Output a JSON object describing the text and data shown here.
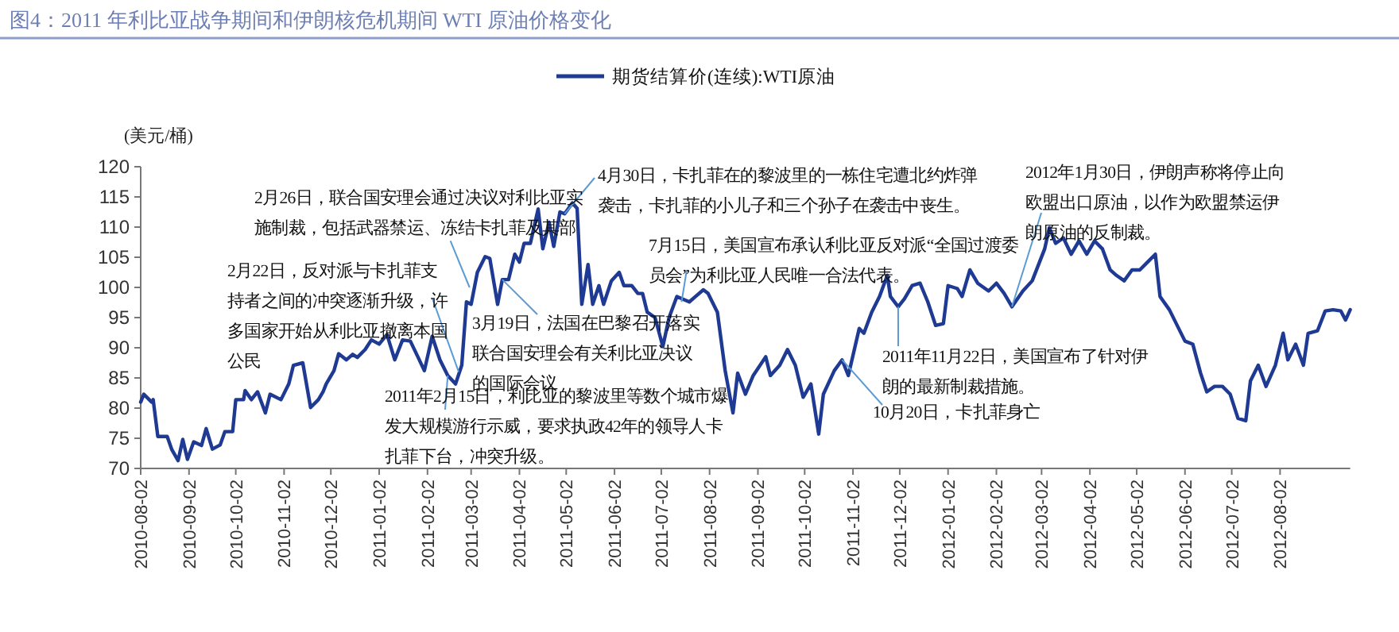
{
  "chart_data": {
    "type": "line",
    "title": "图4：2011 年利比亚战争期间和伊朗核危机期间 WTI 原油价格变化",
    "ylabel": "(美元/桶)",
    "legend": "top",
    "grid": false,
    "xlim": [
      "2010-08-02",
      "2012-09-16"
    ],
    "xticks": [
      "2010-08-02",
      "2010-09-02",
      "2010-10-02",
      "2010-11-02",
      "2010-12-02",
      "2011-01-02",
      "2011-02-02",
      "2011-03-02",
      "2011-04-02",
      "2011-05-02",
      "2011-06-02",
      "2011-07-02",
      "2011-08-02",
      "2011-09-02",
      "2011-10-02",
      "2011-11-02",
      "2011-12-02",
      "2012-01-02",
      "2012-02-02",
      "2012-03-02",
      "2012-04-02",
      "2012-05-02",
      "2012-06-02",
      "2012-07-02",
      "2012-08-02"
    ],
    "ylim": [
      70,
      120
    ],
    "yticks": [
      70,
      75,
      80,
      85,
      90,
      95,
      100,
      105,
      110,
      115,
      120
    ],
    "x": [
      "2010-08-02",
      "2010-08-04",
      "2010-08-09",
      "2010-08-10",
      "2010-08-13",
      "2010-08-19",
      "2010-08-22",
      "2010-08-26",
      "2010-08-29",
      "2010-09-01",
      "2010-09-05",
      "2010-09-10",
      "2010-09-13",
      "2010-09-17",
      "2010-09-22",
      "2010-09-25",
      "2010-09-30",
      "2010-10-02",
      "2010-10-07",
      "2010-10-08",
      "2010-10-12",
      "2010-10-16",
      "2010-10-21",
      "2010-10-24",
      "2010-10-31",
      "2010-11-05",
      "2010-11-08",
      "2010-11-14",
      "2010-11-19",
      "2010-11-24",
      "2010-11-27",
      "2010-11-29",
      "2010-12-04",
      "2010-12-07",
      "2010-12-12",
      "2010-12-16",
      "2010-12-19",
      "2010-12-24",
      "2010-12-28",
      "2011-01-02",
      "2011-01-07",
      "2011-01-12",
      "2011-01-17",
      "2011-01-22",
      "2011-01-27",
      "2011-01-31",
      "2011-02-05",
      "2011-02-10",
      "2011-02-15",
      "2011-02-20",
      "2011-02-24",
      "2011-02-27",
      "2011-03-02",
      "2011-03-06",
      "2011-03-11",
      "2011-03-14",
      "2011-03-19",
      "2011-03-22",
      "2011-03-26",
      "2011-03-30",
      "2011-04-02",
      "2011-04-05",
      "2011-04-09",
      "2011-04-14",
      "2011-04-17",
      "2011-04-21",
      "2011-04-24",
      "2011-04-28",
      "2011-05-01",
      "2011-05-06",
      "2011-05-09",
      "2011-05-12",
      "2011-05-16",
      "2011-05-19",
      "2011-05-23",
      "2011-05-26",
      "2011-05-31",
      "2011-06-05",
      "2011-06-08",
      "2011-06-13",
      "2011-06-17",
      "2011-06-20",
      "2011-06-23",
      "2011-06-28",
      "2011-07-03",
      "2011-07-07",
      "2011-07-12",
      "2011-07-20",
      "2011-07-24",
      "2011-07-29",
      "2011-08-01",
      "2011-08-07",
      "2011-08-12",
      "2011-08-17",
      "2011-08-20",
      "2011-08-25",
      "2011-08-30",
      "2011-09-07",
      "2011-09-10",
      "2011-09-16",
      "2011-09-21",
      "2011-09-26",
      "2011-10-01",
      "2011-10-06",
      "2011-10-11",
      "2011-10-14",
      "2011-10-21",
      "2011-10-26",
      "2011-10-30",
      "2011-11-06",
      "2011-11-09",
      "2011-11-14",
      "2011-11-19",
      "2011-11-24",
      "2011-11-26",
      "2011-12-01",
      "2011-12-05",
      "2011-12-10",
      "2011-12-15",
      "2011-12-20",
      "2011-12-25",
      "2011-12-30",
      "2012-01-02",
      "2012-01-08",
      "2012-01-11",
      "2012-01-16",
      "2012-01-21",
      "2012-01-28",
      "2012-02-02",
      "2012-02-07",
      "2012-02-12",
      "2012-02-19",
      "2012-02-25",
      "2012-03-04",
      "2012-03-07",
      "2012-03-11",
      "2012-03-16",
      "2012-03-21",
      "2012-03-26",
      "2012-03-31",
      "2012-04-05",
      "2012-04-10",
      "2012-04-15",
      "2012-04-19",
      "2012-04-24",
      "2012-04-29",
      "2012-05-04",
      "2012-05-09",
      "2012-05-14",
      "2012-05-17",
      "2012-05-23",
      "2012-05-28",
      "2012-06-02",
      "2012-06-07",
      "2012-06-12",
      "2012-06-16",
      "2012-06-21",
      "2012-06-26",
      "2012-07-01",
      "2012-07-06",
      "2012-07-11",
      "2012-07-14",
      "2012-07-19",
      "2012-07-24",
      "2012-07-30",
      "2012-08-04",
      "2012-08-07",
      "2012-08-12",
      "2012-08-17",
      "2012-08-20",
      "2012-08-26",
      "2012-08-31",
      "2012-09-05",
      "2012-09-10",
      "2012-09-13",
      "2012-09-16"
    ],
    "series": [
      {
        "name": "期货结算价(连续):WTI原油",
        "color": "#1f3a93",
        "values": [
          81.0,
          82.3,
          81.0,
          81.4,
          75.3,
          75.3,
          73.1,
          71.3,
          74.8,
          71.5,
          74.4,
          73.8,
          76.6,
          73.2,
          73.9,
          76.1,
          76.1,
          81.4,
          81.4,
          82.9,
          81.4,
          82.7,
          79.2,
          82.3,
          81.4,
          84.0,
          87.1,
          87.5,
          80.1,
          81.4,
          82.7,
          84.0,
          86.2,
          89.0,
          88.0,
          88.9,
          88.4,
          89.7,
          91.3,
          90.6,
          92.2,
          88.0,
          91.3,
          91.1,
          88.4,
          86.2,
          91.9,
          88.0,
          85.4,
          84.0,
          87.1,
          97.6,
          97.2,
          102.5,
          105.1,
          104.8,
          97.2,
          101.3,
          101.3,
          105.5,
          104.2,
          107.3,
          107.3,
          113.0,
          106.4,
          110.8,
          106.8,
          112.5,
          112.2,
          114.0,
          113.1,
          97.2,
          103.8,
          97.2,
          100.3,
          97.2,
          101.1,
          102.5,
          100.3,
          100.3,
          99.0,
          99.0,
          95.9,
          95.0,
          90.2,
          95.0,
          98.5,
          97.6,
          98.5,
          99.6,
          99.0,
          95.9,
          86.2,
          79.2,
          85.8,
          82.3,
          85.4,
          88.5,
          85.4,
          87.1,
          89.7,
          87.1,
          81.8,
          84.0,
          75.7,
          82.3,
          86.2,
          88.0,
          85.4,
          93.2,
          92.4,
          95.9,
          98.5,
          102.0,
          98.5,
          96.8,
          98.1,
          100.3,
          100.7,
          97.6,
          93.7,
          94.0,
          100.3,
          99.8,
          98.5,
          102.9,
          100.7,
          99.4,
          100.7,
          99.0,
          96.8,
          99.4,
          101.1,
          106.4,
          109.9,
          107.3,
          108.2,
          105.5,
          107.7,
          105.5,
          107.7,
          106.4,
          102.9,
          102.0,
          101.1,
          102.9,
          102.9,
          104.2,
          105.5,
          98.5,
          96.3,
          93.7,
          91.1,
          90.6,
          85.8,
          82.7,
          83.6,
          83.6,
          82.3,
          78.3,
          77.9,
          84.5,
          87.1,
          83.6,
          87.1,
          92.4,
          88.0,
          90.6,
          87.1,
          92.4,
          92.8,
          96.1,
          96.3,
          96.1,
          94.6,
          96.3
        ]
      }
    ],
    "annotations": [
      {
        "text": "2月26日，联合国安理会通过决议对利比亚实施制裁，包括武器禁运、冻结卡扎菲及其部",
        "x": "2011-03-01",
        "y": 100
      },
      {
        "text": "4月30日，卡扎菲在的黎波里的一栋住宅遭北约炸弹袭击，卡扎菲的小儿子和三个孙子在袭击中丧生。",
        "x": "2011-05-01",
        "y": 112.2
      },
      {
        "text": "2月22日，反对派与卡扎菲支持者之间的冲突逐渐升级，许多国家开始从利比亚撤离本国公民",
        "x": "2011-02-22",
        "y": 86
      },
      {
        "text": "3月19日，法国在巴黎召开落实联合国安理会有关利比亚决议的国际会议",
        "x": "2011-03-22",
        "y": 101.3
      },
      {
        "text": "2011年2月15日，利比亚的黎波里等数个城市爆发大规模游行示威，要求执政42年的领导人卡扎菲下台，冲突升级。",
        "x": "2011-02-15",
        "y": 85.4
      },
      {
        "text": "7月15日，美国宣布承认利比亚反对派“全国过渡委员会”为利比亚人民唯一合法代表。",
        "x": "2011-07-15",
        "y": 97.6
      },
      {
        "text": "2011年11月22日，美国宣布了针对伊朗的最新制裁措施。",
        "x": "2011-12-01",
        "y": 96.8
      },
      {
        "text": "10月20日，卡扎菲身亡",
        "x": "2011-10-26",
        "y": 88
      },
      {
        "text": "2012年1月30日，伊朗声称将停止向欧盟出口原油，以作为欧盟禁运伊朗原油的反制裁。",
        "x": "2012-02-12",
        "y": 96.8
      }
    ]
  }
}
